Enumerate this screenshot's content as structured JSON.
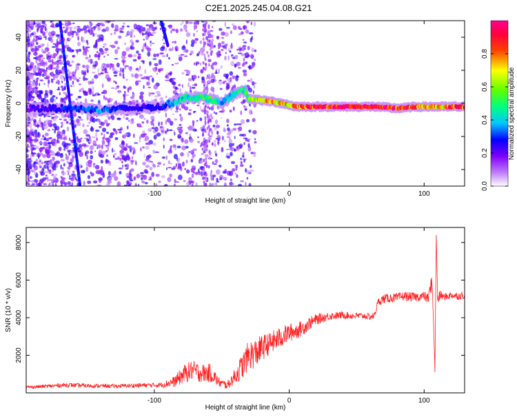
{
  "title": "C2E1.2025.245.04.08.G21",
  "colors": {
    "snr_line": "#ff2020",
    "frame": "#000000",
    "background": "#ffffff"
  },
  "chart_data": [
    {
      "type": "heatmap",
      "xlabel": "Height of straight line (km)",
      "ylabel": "Frequency (Hz)",
      "xlim": [
        -195,
        130
      ],
      "ylim": [
        -50,
        50
      ],
      "xticks": [
        -100,
        0,
        100
      ],
      "yticks": [
        -40,
        -20,
        0,
        20,
        40
      ],
      "colorbar": {
        "label": "Normalized spectral amplitude",
        "range": [
          0,
          1
        ],
        "ticks": [
          0.0,
          0.2,
          0.4,
          0.6,
          0.8
        ],
        "tick_labels": [
          "0.0",
          "0.2",
          "0.4",
          "0.6",
          "0.8"
        ],
        "colormap": [
          "#ffffff",
          "#a000ff",
          "#0000ff",
          "#00ffff",
          "#00ff00",
          "#ffff00",
          "#ff0000",
          "#ff0080"
        ]
      },
      "ridge": [
        {
          "x": -195,
          "y": -3,
          "a": 0.2
        },
        {
          "x": -160,
          "y": -3,
          "a": 0.3
        },
        {
          "x": -140,
          "y": -4,
          "a": 0.35
        },
        {
          "x": -120,
          "y": -3,
          "a": 0.25
        },
        {
          "x": -95,
          "y": -2,
          "a": 0.25
        },
        {
          "x": -88,
          "y": 0,
          "a": 0.4
        },
        {
          "x": -75,
          "y": 4,
          "a": 0.45
        },
        {
          "x": -60,
          "y": 3,
          "a": 0.5
        },
        {
          "x": -50,
          "y": 0,
          "a": 0.4
        },
        {
          "x": -40,
          "y": 6,
          "a": 0.45
        },
        {
          "x": -33,
          "y": 8,
          "a": 0.45
        },
        {
          "x": -30,
          "y": 3,
          "a": 0.55
        },
        {
          "x": -22,
          "y": 2,
          "a": 0.75
        },
        {
          "x": -12,
          "y": 1,
          "a": 0.75
        },
        {
          "x": -5,
          "y": 0,
          "a": 0.7
        },
        {
          "x": 5,
          "y": -2,
          "a": 0.8
        },
        {
          "x": 20,
          "y": -2,
          "a": 0.9
        },
        {
          "x": 40,
          "y": -2,
          "a": 0.95
        },
        {
          "x": 65,
          "y": -2,
          "a": 0.95
        },
        {
          "x": 80,
          "y": -3,
          "a": 0.9
        },
        {
          "x": 95,
          "y": -2,
          "a": 0.8
        },
        {
          "x": 105,
          "y": -2,
          "a": 0.7
        },
        {
          "x": 130,
          "y": -2,
          "a": 0.9
        }
      ],
      "streaks": [
        {
          "x1": -170,
          "y1": 50,
          "x2": -155,
          "y2": -50
        },
        {
          "x1": -95,
          "y1": 50,
          "x2": -90,
          "y2": 35
        }
      ]
    },
    {
      "type": "line",
      "xlabel": "Height of straight line (km)",
      "ylabel": "SNR (10 * v/v)",
      "xlim": [
        -195,
        130
      ],
      "ylim": [
        0,
        8800
      ],
      "xticks": [
        -100,
        0,
        100
      ],
      "yticks": [
        2000,
        4000,
        6000,
        8000
      ],
      "series": [
        {
          "name": "SNR",
          "x": [
            -195,
            -180,
            -165,
            -150,
            -130,
            -110,
            -95,
            -85,
            -78,
            -72,
            -65,
            -58,
            -52,
            -46,
            -40,
            -35,
            -30,
            -25,
            -20,
            -15,
            -10,
            -5,
            0,
            5,
            10,
            15,
            20,
            25,
            30,
            35,
            40,
            45,
            50,
            55,
            60,
            63,
            66,
            70,
            75,
            80,
            85,
            90,
            95,
            100,
            103,
            106,
            108,
            109,
            110,
            112,
            115,
            120,
            125,
            130
          ],
          "y": [
            300,
            350,
            420,
            380,
            360,
            400,
            420,
            600,
            1000,
            1200,
            1050,
            1050,
            550,
            400,
            900,
            1400,
            2000,
            2100,
            2400,
            2600,
            2800,
            3000,
            3200,
            3300,
            3450,
            3700,
            3900,
            4000,
            4100,
            4100,
            4150,
            4100,
            4100,
            4100,
            4050,
            4100,
            4850,
            5000,
            5050,
            5050,
            5150,
            5100,
            5100,
            5150,
            5000,
            6000,
            1100,
            8400,
            5000,
            5200,
            5100,
            5200,
            5150,
            5200
          ],
          "noise": [
            80,
            100,
            120,
            110,
            100,
            120,
            140,
            300,
            500,
            550,
            500,
            500,
            250,
            200,
            450,
            700,
            800,
            800,
            700,
            600,
            600,
            550,
            500,
            450,
            400,
            350,
            300,
            250,
            220,
            200,
            200,
            180,
            180,
            180,
            180,
            180,
            200,
            250,
            250,
            250,
            250,
            250,
            250,
            250,
            300,
            500,
            0,
            0,
            400,
            250,
            200,
            200,
            200,
            200
          ]
        }
      ]
    }
  ]
}
